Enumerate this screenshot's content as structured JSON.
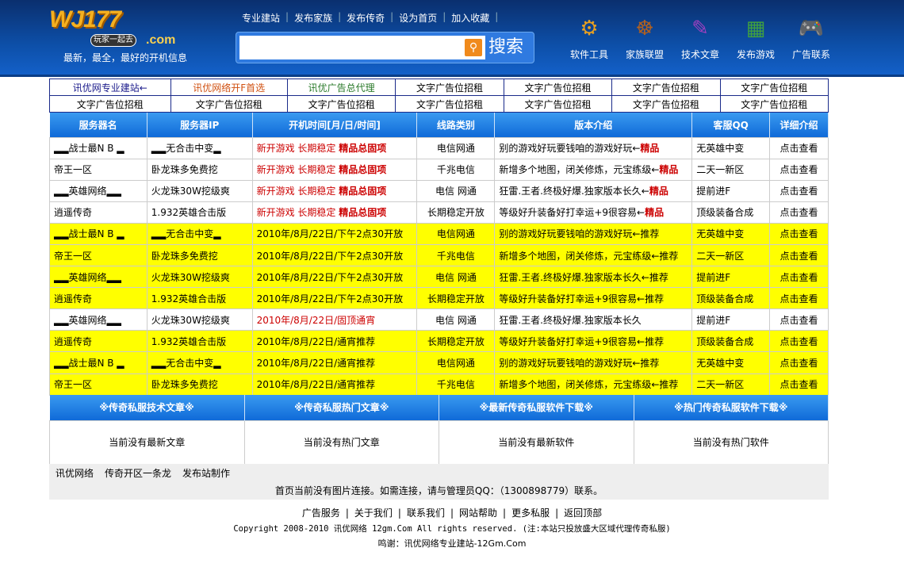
{
  "header": {
    "logo_text": "WJ177",
    "logo_com": ".com",
    "logo_badge": "玩家一起去",
    "slogan": "最新，最全，最好的开机信息",
    "nav": [
      "专业建站",
      "发布家族",
      "发布传奇",
      "设为首页",
      "加入收藏"
    ],
    "search": {
      "value": "",
      "placeholder": "",
      "button": "搜索",
      "icon": "search-icon"
    },
    "icons": [
      {
        "label": "软件工具",
        "icon": "gear-icon",
        "color": "#e8a020"
      },
      {
        "label": "家族联盟",
        "icon": "ship-wheel-icon",
        "color": "#b06020"
      },
      {
        "label": "技术文章",
        "icon": "book-icon",
        "color": "#a040c0"
      },
      {
        "label": "发布游戏",
        "icon": "calendar-icon",
        "color": "#40a040"
      },
      {
        "label": "广告联系",
        "icon": "gamepad-icon",
        "color": "#6a8aa0"
      }
    ]
  },
  "ads": [
    [
      {
        "t": "讯优网专业建站←",
        "c": "#1a1a8a"
      },
      {
        "t": "讯优网络开F首选",
        "c": "#d05010"
      },
      {
        "t": "讯优广告总代理",
        "c": "#2a7a2a"
      },
      {
        "t": "文字广告位招租"
      },
      {
        "t": "文字广告位招租"
      },
      {
        "t": "文字广告位招租"
      },
      {
        "t": "文字广告位招租"
      }
    ],
    [
      {
        "t": "文字广告位招租"
      },
      {
        "t": "文字广告位招租"
      },
      {
        "t": "文字广告位招租"
      },
      {
        "t": "文字广告位招租"
      },
      {
        "t": "文字广告位招租"
      },
      {
        "t": "文字广告位招租"
      },
      {
        "t": "文字广告位招租"
      }
    ]
  ],
  "table": {
    "headers": [
      "服务器名",
      "服务器IP",
      "开机时间[月/日/时间]",
      "线路类别",
      "版本介绍",
      "客服QQ",
      "详细介绍"
    ],
    "rows": [
      {
        "hl": false,
        "name": "▂▂战士最N B ▂",
        "ip": "▂▂无合击中变▂",
        "time": "新开游戏 长期稳定 ",
        "time_tag": "精品总固项",
        "time_red": true,
        "line": "电信网通",
        "ver": "别的游戏好玩要钱咱的游戏好玩←",
        "ver_tag": "精品",
        "qq": "无英雄中变",
        "detail": "点击查看"
      },
      {
        "hl": false,
        "name": "帝王一区",
        "ip": "卧龙珠多免费挖",
        "time": "新开游戏 长期稳定 ",
        "time_tag": "精品总固项",
        "time_red": true,
        "line": "千兆电信",
        "ver": "新增多个地图，闭关修炼，元宝练级←",
        "ver_tag": "精品",
        "qq": "二天一新区",
        "detail": "点击查看"
      },
      {
        "hl": false,
        "name": "▂▂英雄网络▂▂",
        "ip": "火龙珠30W挖级爽",
        "time": "新开游戏 长期稳定 ",
        "time_tag": "精品总固项",
        "time_red": true,
        "line": "电信 网通",
        "ver": "狂雷.王者.终极好爆.独家版本长久←",
        "ver_tag": "精品",
        "qq": "提前进F",
        "detail": "点击查看"
      },
      {
        "hl": false,
        "name": "逍遥传奇",
        "ip": "1.932英雄合击版",
        "time": "新开游戏 长期稳定 ",
        "time_tag": "精品总固项",
        "time_red": true,
        "line": "长期稳定开放",
        "ver": "等级好升装备好打幸运+9很容易←",
        "ver_tag": "精品",
        "qq": "顶级装备合成",
        "detail": "点击查看"
      },
      {
        "hl": true,
        "name": "▂▂战士最N B ▂",
        "ip": "▂▂无合击中变▂",
        "time": "2010年/8月/22日/下午2点30开放",
        "time_tag": "",
        "time_red": false,
        "line": "电信网通",
        "ver": "别的游戏好玩要钱咱的游戏好玩←推荐",
        "ver_tag": "",
        "qq": "无英雄中变",
        "detail": "点击查看"
      },
      {
        "hl": true,
        "name": "帝王一区",
        "ip": "卧龙珠多免费挖",
        "time": "2010年/8月/22日/下午2点30开放",
        "time_tag": "",
        "time_red": false,
        "line": "千兆电信",
        "ver": "新增多个地图，闭关修炼，元宝练级←推荐",
        "ver_tag": "",
        "qq": "二天一新区",
        "detail": "点击查看"
      },
      {
        "hl": true,
        "name": "▂▂英雄网络▂▂",
        "ip": "火龙珠30W挖级爽",
        "time": "2010年/8月/22日/下午2点30开放",
        "time_tag": "",
        "time_red": false,
        "line": "电信 网通",
        "ver": "狂雷.王者.终极好爆.独家版本长久←推荐",
        "ver_tag": "",
        "qq": "提前进F",
        "detail": "点击查看"
      },
      {
        "hl": true,
        "name": "逍遥传奇",
        "ip": "1.932英雄合击版",
        "time": "2010年/8月/22日/下午2点30开放",
        "time_tag": "",
        "time_red": false,
        "line": "长期稳定开放",
        "ver": "等级好升装备好打幸运+9很容易←推荐",
        "ver_tag": "",
        "qq": "顶级装备合成",
        "detail": "点击查看"
      },
      {
        "hl": false,
        "name": "▂▂英雄网络▂▂",
        "ip": "火龙珠30W挖级爽",
        "time": "2010年/8月/22日/固顶通宵",
        "time_tag": "",
        "time_red": true,
        "line": "电信 网通",
        "ver": "狂雷.王者.终极好爆.独家版本长久",
        "ver_tag": "",
        "qq": "提前进F",
        "detail": "点击查看"
      },
      {
        "hl": true,
        "name": "逍遥传奇",
        "ip": "1.932英雄合击版",
        "time": "2010年/8月/22日/通宵推荐",
        "time_tag": "",
        "time_red": false,
        "line": "长期稳定开放",
        "ver": "等级好升装备好打幸运+9很容易←推荐",
        "ver_tag": "",
        "qq": "顶级装备合成",
        "detail": "点击查看"
      },
      {
        "hl": true,
        "name": "▂▂战士最N B ▂",
        "ip": "▂▂无合击中变▂",
        "time": "2010年/8月/22日/通宵推荐",
        "time_tag": "",
        "time_red": false,
        "line": "电信网通",
        "ver": "别的游戏好玩要钱咱的游戏好玩←推荐",
        "ver_tag": "",
        "qq": "无英雄中变",
        "detail": "点击查看"
      },
      {
        "hl": true,
        "name": "帝王一区",
        "ip": "卧龙珠多免费挖",
        "time": "2010年/8月/22日/通宵推荐",
        "time_tag": "",
        "time_red": false,
        "line": "千兆电信",
        "ver": "新增多个地图，闭关修炼，元宝练级←推荐",
        "ver_tag": "",
        "qq": "二天一新区",
        "detail": "点击查看"
      }
    ]
  },
  "sections": [
    {
      "title": "※传奇私服技术文章※",
      "body": "当前没有最新文章"
    },
    {
      "title": "※传奇私服热门文章※",
      "body": "当前没有热门文章"
    },
    {
      "title": "※最新传奇私服软件下载※",
      "body": "当前没有最新软件"
    },
    {
      "title": "※热门传奇私服软件下载※",
      "body": "当前没有热门软件"
    }
  ],
  "links": {
    "items": [
      "讯优网络",
      "传奇开区一条龙",
      "发布站制作"
    ],
    "note": "首页当前没有图片连接。如需连接，请与管理员QQ：（1300898779）联系。"
  },
  "footer": {
    "links": [
      "广告服务",
      "关于我们",
      "联系我们",
      "网站帮助",
      "更多私服",
      "返回顶部"
    ],
    "copyright": "Copyright 2008-2010 讯优网络 12gm.Com All rights reserved. (注:本站只投放盛大区域代理传奇私服)",
    "thanks": "鸣谢：讯优网络专业建站-12Gm.Com"
  }
}
